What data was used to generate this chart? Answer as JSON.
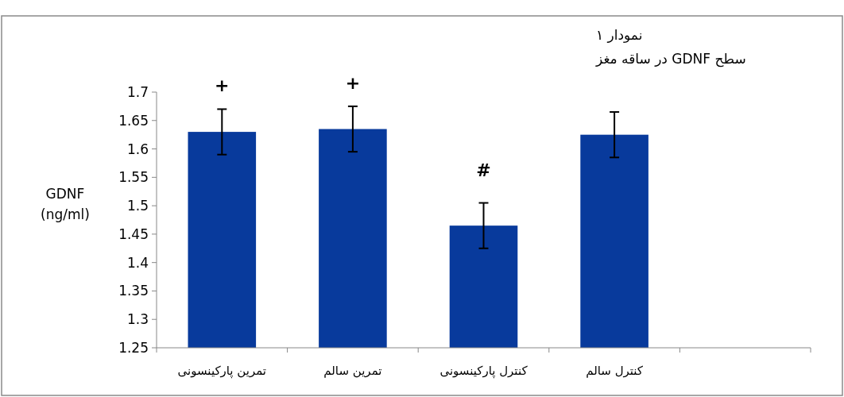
{
  "chart_data": {
    "type": "bar",
    "title": "نمودار ١",
    "subtitle": "سطح GDNF در ساقه مغز",
    "ylabel": "GDNF (ng/ml)",
    "categories": [
      "تمرین پارکینسونی",
      "تمرین سالم",
      "کنترل پارکینسونی",
      "کنترل سالم",
      null
    ],
    "values": [
      1.63,
      1.635,
      1.465,
      1.625,
      null
    ],
    "errors": [
      0.04,
      0.04,
      0.04,
      0.04,
      null
    ],
    "color": "#083a9c",
    "ylim": [
      1.25,
      1.7
    ],
    "yticks": [
      1.25,
      1.3,
      1.35,
      1.4,
      1.45,
      1.5,
      1.55,
      1.6,
      1.65,
      1.7
    ],
    "annotations": [
      {
        "text": "+",
        "x": "تمرین پارکینسونی",
        "y": 1.67
      },
      {
        "text": "+",
        "x": "تمرین سالم",
        "y": 1.675
      },
      {
        "text": "#",
        "x": "کنترل پارکینسونی",
        "y": 1.505
      }
    ],
    "grid": false
  }
}
